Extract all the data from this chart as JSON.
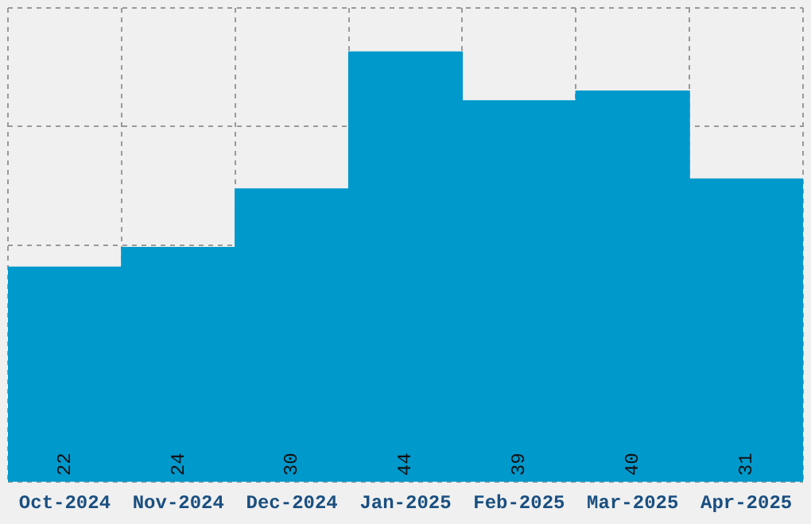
{
  "chart_data": {
    "type": "bar",
    "categories": [
      "Oct-2024",
      "Nov-2024",
      "Dec-2024",
      "Jan-2025",
      "Feb-2025",
      "Mar-2025",
      "Apr-2025"
    ],
    "values": [
      22,
      24,
      30,
      44,
      39,
      40,
      31
    ],
    "color": "#0099cc",
    "data_labels": true,
    "grid": true,
    "tick_labels": "x",
    "ylim": [
      0,
      48.5
    ]
  }
}
